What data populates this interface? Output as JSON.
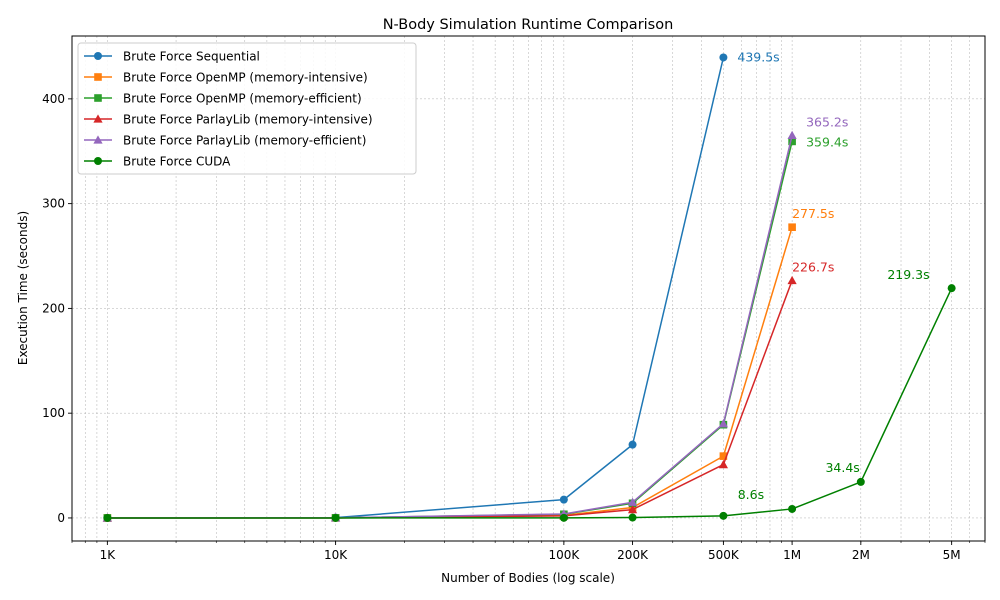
{
  "chart_data": {
    "type": "line",
    "title": "N-Body Simulation Runtime Comparison",
    "xlabel": "Number of Bodies (log scale)",
    "ylabel": "Execution Time (seconds)",
    "xscale": "log",
    "xlim": [
      700,
      7000000
    ],
    "ylim": [
      -22,
      460
    ],
    "grid": true,
    "legend_position": "top-left",
    "x_ticks": [
      {
        "value": 1000,
        "label": "1K"
      },
      {
        "value": 10000,
        "label": "10K"
      },
      {
        "value": 100000,
        "label": "100K"
      },
      {
        "value": 200000,
        "label": "200K"
      },
      {
        "value": 500000,
        "label": "500K"
      },
      {
        "value": 1000000,
        "label": "1M"
      },
      {
        "value": 2000000,
        "label": "2M"
      },
      {
        "value": 5000000,
        "label": "5M"
      }
    ],
    "y_ticks": [
      0,
      100,
      200,
      300,
      400
    ],
    "series": [
      {
        "name": "Brute Force Sequential",
        "color": "#1f77b4",
        "marker": "circle",
        "x": [
          1000,
          10000,
          100000,
          200000,
          500000
        ],
        "y": [
          0.1,
          0.3,
          17.5,
          70,
          439.5
        ]
      },
      {
        "name": "Brute Force OpenMP (memory-intensive)",
        "color": "#ff7f0e",
        "marker": "square",
        "x": [
          1000,
          10000,
          100000,
          200000,
          500000,
          1000000
        ],
        "y": [
          0.0,
          0.1,
          2.5,
          10,
          59,
          277.5
        ]
      },
      {
        "name": "Brute Force OpenMP (memory-efficient)",
        "color": "#2ca02c",
        "marker": "square",
        "x": [
          1000,
          10000,
          100000,
          200000,
          500000,
          1000000
        ],
        "y": [
          0.0,
          0.1,
          3.5,
          14,
          89,
          359.4
        ]
      },
      {
        "name": "Brute Force ParlayLib (memory-intensive)",
        "color": "#d62728",
        "marker": "triangle",
        "x": [
          1000,
          10000,
          100000,
          200000,
          500000,
          1000000
        ],
        "y": [
          0.0,
          0.1,
          2.0,
          8,
          51,
          226.7
        ]
      },
      {
        "name": "Brute Force ParlayLib (memory-efficient)",
        "color": "#9467bd",
        "marker": "triangle",
        "x": [
          1000,
          10000,
          100000,
          200000,
          500000,
          1000000
        ],
        "y": [
          0.0,
          0.1,
          3.8,
          15,
          90,
          365.2
        ]
      },
      {
        "name": "Brute Force CUDA",
        "color": "#008000",
        "marker": "circle",
        "x": [
          1000,
          10000,
          100000,
          200000,
          500000,
          1000000,
          2000000,
          5000000
        ],
        "y": [
          0.0,
          0.0,
          0.1,
          0.4,
          2.0,
          8.6,
          34.4,
          219.3
        ]
      }
    ],
    "annotations": [
      {
        "text": "439.5s",
        "series": 0,
        "x": 500000,
        "y": 439.5,
        "color": "#1f77b4"
      },
      {
        "text": "365.2s",
        "series": 4,
        "x": 1000000,
        "y": 365.2,
        "color": "#9467bd"
      },
      {
        "text": "359.4s",
        "series": 2,
        "x": 1000000,
        "y": 359.4,
        "color": "#2ca02c"
      },
      {
        "text": "277.5s",
        "series": 1,
        "x": 1000000,
        "y": 277.5,
        "color": "#ff7f0e"
      },
      {
        "text": "226.7s",
        "series": 3,
        "x": 1000000,
        "y": 226.7,
        "color": "#d62728"
      },
      {
        "text": "219.3s",
        "series": 5,
        "x": 5000000,
        "y": 219.3,
        "color": "#008000"
      },
      {
        "text": "34.4s",
        "series": 5,
        "x": 2000000,
        "y": 34.4,
        "color": "#008000"
      },
      {
        "text": "8.6s",
        "series": 5,
        "x": 1000000,
        "y": 8.6,
        "color": "#008000"
      }
    ]
  }
}
